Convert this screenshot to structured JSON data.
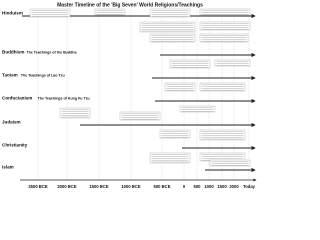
{
  "title": "Master Timeline of the 'Big Seven' World Religions/Teachings",
  "rows": [
    {
      "label": "Hinduism"
    },
    {
      "label": "Buddhism",
      "subtitle": "The Teachings of the Buddha"
    },
    {
      "label": "Taoism",
      "subtitle": "The Teachings of Lao Tzu"
    },
    {
      "label": "Confucianism",
      "subtitle": "The Teachings of Kung Fu Tzu"
    },
    {
      "label": "Judaism"
    },
    {
      "label": "Christianity"
    },
    {
      "label": "Islam"
    }
  ],
  "axis": [
    "2500 BCE",
    "2000 BCE",
    "1500 BCE",
    "1000 BCE",
    "500 BCE",
    "0",
    "500",
    "1000",
    "1500",
    "2000",
    "Today"
  ]
}
